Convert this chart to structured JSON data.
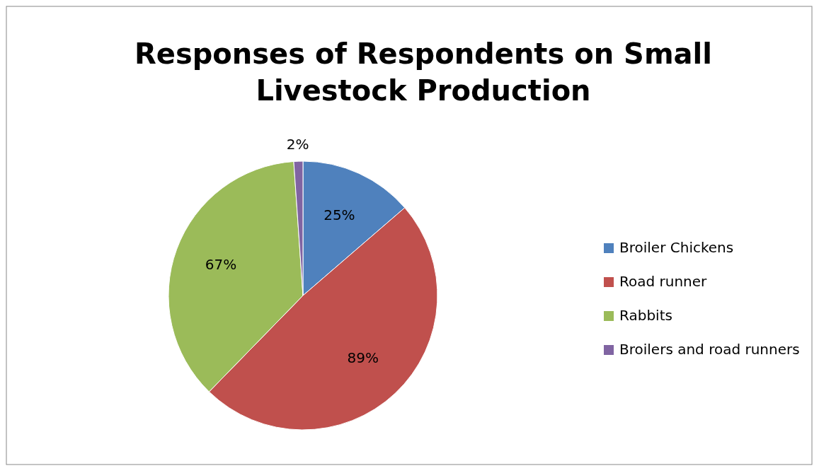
{
  "chart_data": {
    "type": "pie",
    "title": "Responses of Respondents on Small Livestock Production",
    "categories": [
      "Broiler Chickens",
      "Road runner",
      "Rabbits",
      "Broilers and road runners"
    ],
    "values": [
      25,
      89,
      67,
      2
    ],
    "colors": [
      "#4f81bd",
      "#c0504d",
      "#9bbb59",
      "#8064a2"
    ],
    "value_labels": [
      "25%",
      "89%",
      "67%",
      "2%"
    ],
    "legend": "right"
  }
}
